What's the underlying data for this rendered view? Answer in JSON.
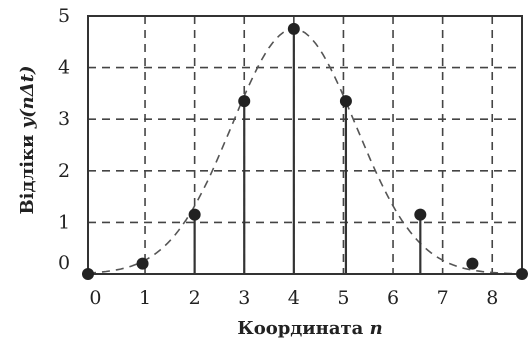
{
  "chart_data": {
    "type": "scatter",
    "style": "stem",
    "xlabel_prefix": "Координата ",
    "xlabel_var": "n",
    "ylabel_prefix": "Відліки ",
    "ylabel_var": "y(nΔt)",
    "x_ticks": [
      "0",
      "1",
      "2",
      "3",
      "4",
      "5",
      "6",
      "7",
      "8"
    ],
    "y_ticks": [
      "0",
      "1",
      "2",
      "3",
      "4",
      "5"
    ],
    "xlim": [
      -0.15,
      8.6
    ],
    "ylim": [
      0,
      5
    ],
    "grid": true,
    "grid_style": "dashed",
    "points": [
      {
        "x": -0.15,
        "y": 0.0
      },
      {
        "x": 0.95,
        "y": 0.2
      },
      {
        "x": 2.0,
        "y": 1.15
      },
      {
        "x": 3.0,
        "y": 3.35
      },
      {
        "x": 4.0,
        "y": 4.75
      },
      {
        "x": 5.05,
        "y": 3.35
      },
      {
        "x": 6.55,
        "y": 1.15
      },
      {
        "x": 7.6,
        "y": 0.2
      },
      {
        "x": 8.6,
        "y": 0.0
      }
    ],
    "envelope": "gaussian-dashed"
  }
}
